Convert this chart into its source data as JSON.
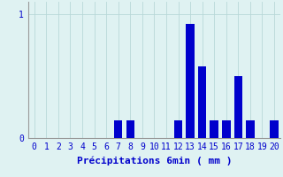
{
  "categories": [
    0,
    1,
    2,
    3,
    4,
    5,
    6,
    7,
    8,
    9,
    10,
    11,
    12,
    13,
    14,
    15,
    16,
    17,
    18,
    19,
    20
  ],
  "values": [
    0,
    0,
    0,
    0,
    0,
    0,
    0,
    0.14,
    0.14,
    0,
    0,
    0,
    0.14,
    0.92,
    0.58,
    0.14,
    0.14,
    0.5,
    0.14,
    0,
    0.14
  ],
  "bar_color": "#0000cc",
  "bg_color": "#dff2f2",
  "grid_color": "#b8d8d8",
  "xlabel": "Précipitations 6min ( mm )",
  "ytick_labels": [
    "0",
    "1"
  ],
  "yticks": [
    0,
    1
  ],
  "ylim": [
    0,
    1.1
  ],
  "xlim": [
    -0.5,
    20.5
  ],
  "xlabel_fontsize": 8,
  "tick_fontsize": 7,
  "bar_width": 0.7
}
